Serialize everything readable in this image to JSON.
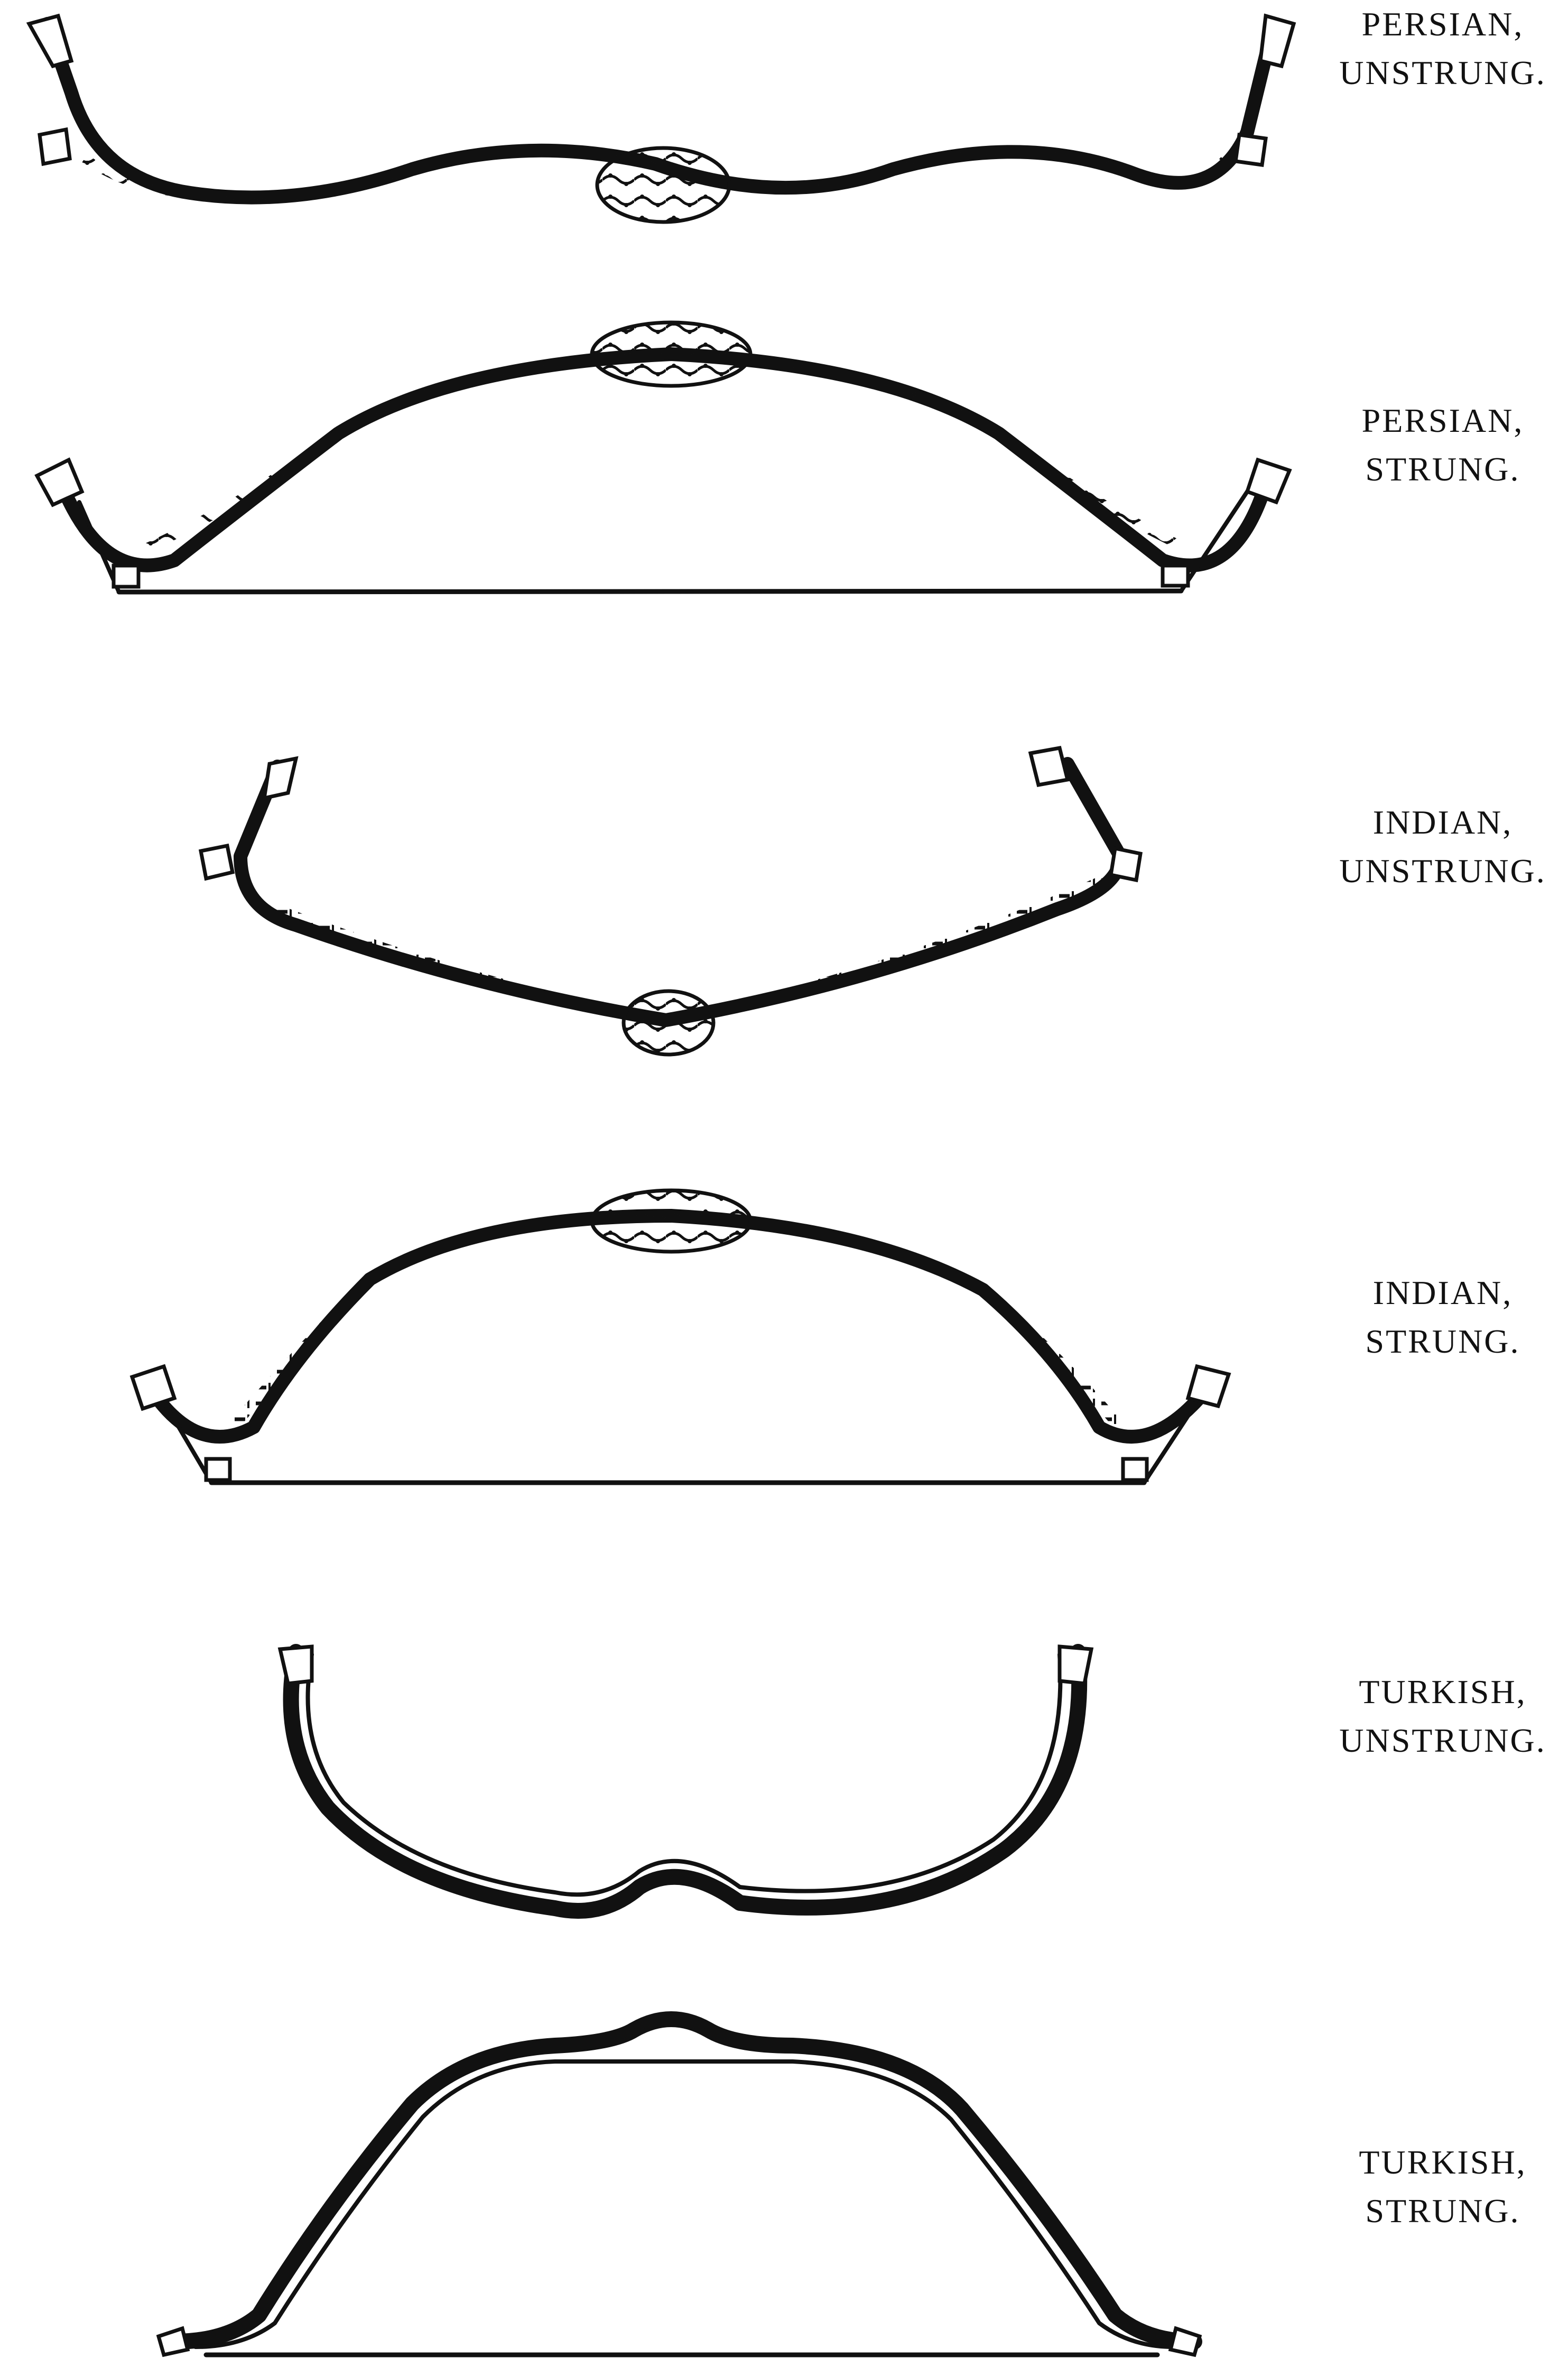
{
  "labels": [
    {
      "line1": "PERSIAN,",
      "line2": "UNSTRUNG."
    },
    {
      "line1": "PERSIAN,",
      "line2": "STRUNG."
    },
    {
      "line1": "INDIAN,",
      "line2": "UNSTRUNG."
    },
    {
      "line1": "INDIAN,",
      "line2": "STRUNG."
    },
    {
      "line1": "TURKISH,",
      "line2": "UNSTRUNG."
    },
    {
      "line1": "TURKISH,",
      "line2": "STRUNG."
    }
  ],
  "colors": {
    "ink": "#111111",
    "paper": "#ffffff"
  }
}
